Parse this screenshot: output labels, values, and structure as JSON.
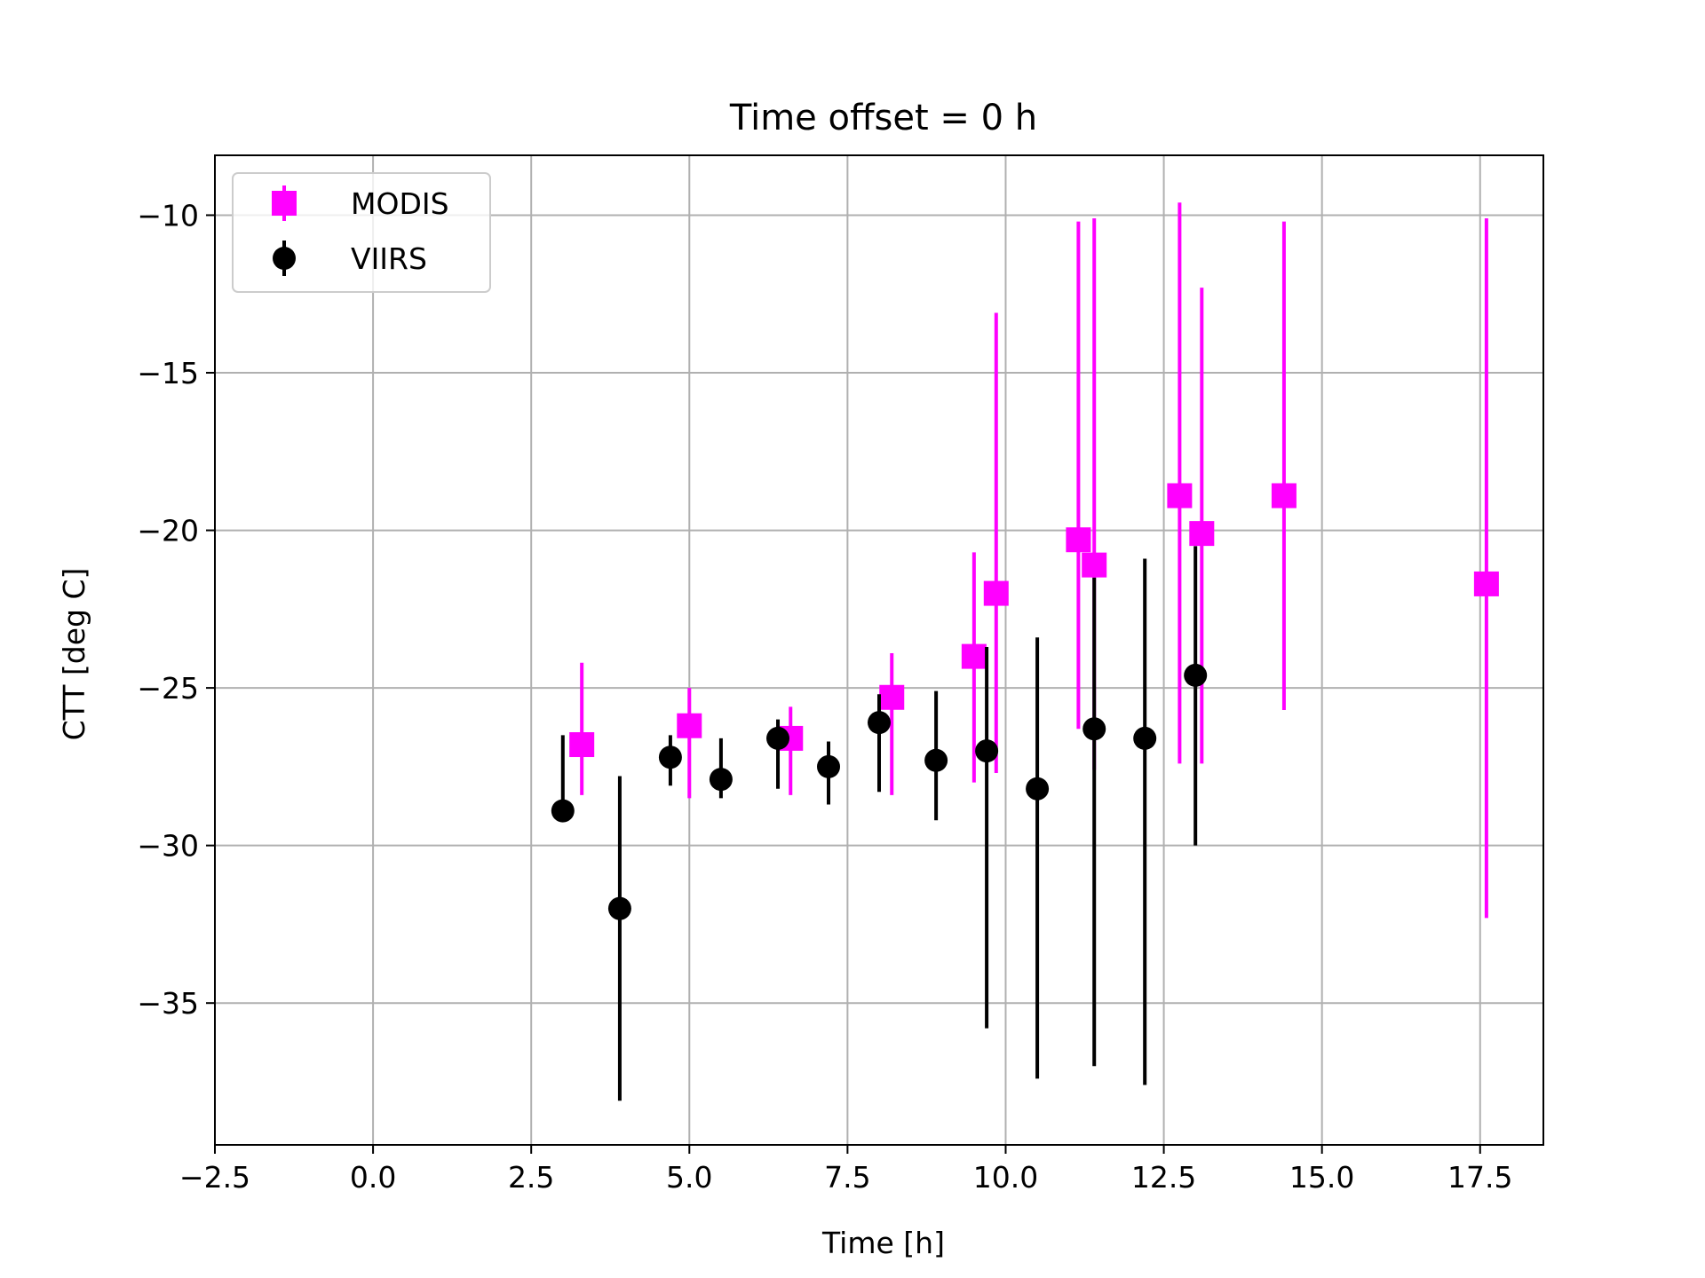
{
  "chart_data": {
    "type": "scatter",
    "title": "Time offset = 0 h",
    "xlabel": "Time [h]",
    "ylabel": "CTT [deg C]",
    "xlim": [
      -2.5,
      18.5
    ],
    "ylim": [
      -39.5,
      -8.1
    ],
    "xticks": [
      -2.5,
      0.0,
      2.5,
      5.0,
      7.5,
      10.0,
      12.5,
      15.0,
      17.5
    ],
    "xtick_labels": [
      "−2.5",
      "0.0",
      "2.5",
      "5.0",
      "7.5",
      "10.0",
      "12.5",
      "15.0",
      "17.5"
    ],
    "yticks": [
      -35,
      -30,
      -25,
      -20,
      -15,
      -10
    ],
    "ytick_labels": [
      "−35",
      "−30",
      "−25",
      "−20",
      "−15",
      "−10"
    ],
    "grid": true,
    "legend": {
      "position": "upper-left"
    },
    "series": [
      {
        "name": "MODIS",
        "marker": "square",
        "color": "#ff00ff",
        "points": [
          {
            "x": 3.3,
            "y": -26.8,
            "lo": -28.4,
            "hi": -24.2
          },
          {
            "x": 5.0,
            "y": -26.2,
            "lo": -28.5,
            "hi": -25.0
          },
          {
            "x": 6.6,
            "y": -26.6,
            "lo": -28.4,
            "hi": -25.6
          },
          {
            "x": 8.2,
            "y": -25.3,
            "lo": -28.4,
            "hi": -23.9
          },
          {
            "x": 9.5,
            "y": -24.0,
            "lo": -28.0,
            "hi": -20.7
          },
          {
            "x": 9.85,
            "y": -22.0,
            "lo": -27.7,
            "hi": -13.1
          },
          {
            "x": 11.15,
            "y": -20.3,
            "lo": -26.3,
            "hi": -10.2
          },
          {
            "x": 11.4,
            "y": -21.1,
            "lo": -27.6,
            "hi": -10.1
          },
          {
            "x": 12.75,
            "y": -18.9,
            "lo": -27.4,
            "hi": -9.6
          },
          {
            "x": 13.1,
            "y": -20.1,
            "lo": -27.4,
            "hi": -12.3
          },
          {
            "x": 14.4,
            "y": -18.9,
            "lo": -25.7,
            "hi": -10.2
          },
          {
            "x": 17.6,
            "y": -21.7,
            "lo": -32.3,
            "hi": -10.1
          }
        ]
      },
      {
        "name": "VIIRS",
        "marker": "circle",
        "color": "#000000",
        "points": [
          {
            "x": 3.0,
            "y": -28.9,
            "lo": -28.9,
            "hi": -26.5
          },
          {
            "x": 3.9,
            "y": -32.0,
            "lo": -38.1,
            "hi": -27.8
          },
          {
            "x": 4.7,
            "y": -27.2,
            "lo": -28.1,
            "hi": -26.5
          },
          {
            "x": 5.5,
            "y": -27.9,
            "lo": -28.5,
            "hi": -26.6
          },
          {
            "x": 6.4,
            "y": -26.6,
            "lo": -28.2,
            "hi": -26.0
          },
          {
            "x": 7.2,
            "y": -27.5,
            "lo": -28.7,
            "hi": -26.7
          },
          {
            "x": 8.0,
            "y": -26.1,
            "lo": -28.3,
            "hi": -25.2
          },
          {
            "x": 8.9,
            "y": -27.3,
            "lo": -29.2,
            "hi": -25.1
          },
          {
            "x": 9.7,
            "y": -27.0,
            "lo": -35.8,
            "hi": -23.7
          },
          {
            "x": 10.5,
            "y": -28.2,
            "lo": -37.4,
            "hi": -23.4
          },
          {
            "x": 11.4,
            "y": -26.3,
            "lo": -37.0,
            "hi": -21.5
          },
          {
            "x": 12.2,
            "y": -26.6,
            "lo": -37.6,
            "hi": -20.9
          },
          {
            "x": 13.0,
            "y": -24.6,
            "lo": -30.0,
            "hi": -20.5
          }
        ]
      }
    ]
  }
}
